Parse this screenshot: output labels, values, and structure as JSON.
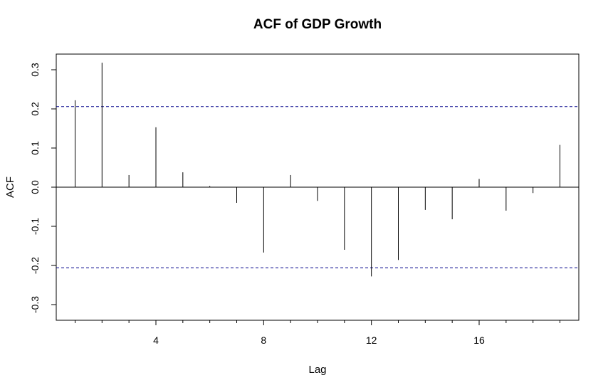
{
  "chart_data": {
    "type": "bar",
    "title": "ACF of GDP Growth",
    "xlabel": "Lag",
    "ylabel": "ACF",
    "xlim": [
      0.3,
      19.7
    ],
    "ylim": [
      -0.34,
      0.34
    ],
    "x_ticks": [
      4,
      8,
      12,
      16
    ],
    "x_tick_labels": [
      "4",
      "8",
      "12",
      "16"
    ],
    "x_minor_ticks": [
      1,
      2,
      3,
      5,
      6,
      7,
      9,
      10,
      11,
      13,
      14,
      15,
      17,
      18,
      19
    ],
    "y_ticks": [
      -0.3,
      -0.2,
      -0.1,
      0.0,
      0.1,
      0.2,
      0.3
    ],
    "y_tick_labels": [
      "-0.3",
      "-0.2",
      "-0.1",
      "0.0",
      "0.1",
      "0.2",
      "0.3"
    ],
    "lags": [
      1,
      2,
      3,
      4,
      5,
      6,
      7,
      8,
      9,
      10,
      11,
      12,
      13,
      14,
      15,
      16,
      17,
      18,
      19
    ],
    "values": [
      0.222,
      0.318,
      0.031,
      0.153,
      0.038,
      0.003,
      -0.04,
      -0.167,
      0.031,
      -0.035,
      -0.16,
      -0.228,
      -0.186,
      -0.058,
      -0.082,
      0.021,
      -0.06,
      -0.015,
      0.108
    ],
    "confidence_bound": 0.206,
    "confidence_color": "#00008b",
    "grid": false,
    "legend": "none"
  }
}
